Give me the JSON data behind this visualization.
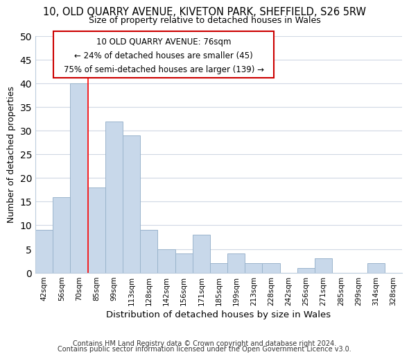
{
  "title": "10, OLD QUARRY AVENUE, KIVETON PARK, SHEFFIELD, S26 5RW",
  "subtitle": "Size of property relative to detached houses in Wales",
  "xlabel": "Distribution of detached houses by size in Wales",
  "ylabel": "Number of detached properties",
  "bin_labels": [
    "42sqm",
    "56sqm",
    "70sqm",
    "85sqm",
    "99sqm",
    "113sqm",
    "128sqm",
    "142sqm",
    "156sqm",
    "171sqm",
    "185sqm",
    "199sqm",
    "213sqm",
    "228sqm",
    "242sqm",
    "256sqm",
    "271sqm",
    "285sqm",
    "299sqm",
    "314sqm",
    "328sqm"
  ],
  "bar_values": [
    9,
    16,
    40,
    18,
    32,
    29,
    9,
    5,
    4,
    8,
    2,
    4,
    2,
    2,
    0,
    1,
    3,
    0,
    0,
    2,
    0
  ],
  "bar_color": "#c8d8ea",
  "bar_edge_color": "#9ab4cc",
  "redline_x": 3,
  "ylim": [
    0,
    50
  ],
  "yticks": [
    0,
    5,
    10,
    15,
    20,
    25,
    30,
    35,
    40,
    45,
    50
  ],
  "annotation_title": "10 OLD QUARRY AVENUE: 76sqm",
  "annotation_line1": "← 24% of detached houses are smaller (45)",
  "annotation_line2": "75% of semi-detached houses are larger (139) →",
  "footer_line1": "Contains HM Land Registry data © Crown copyright and database right 2024.",
  "footer_line2": "Contains public sector information licensed under the Open Government Licence v3.0.",
  "background_color": "#ffffff",
  "grid_color": "#d0d8e4"
}
